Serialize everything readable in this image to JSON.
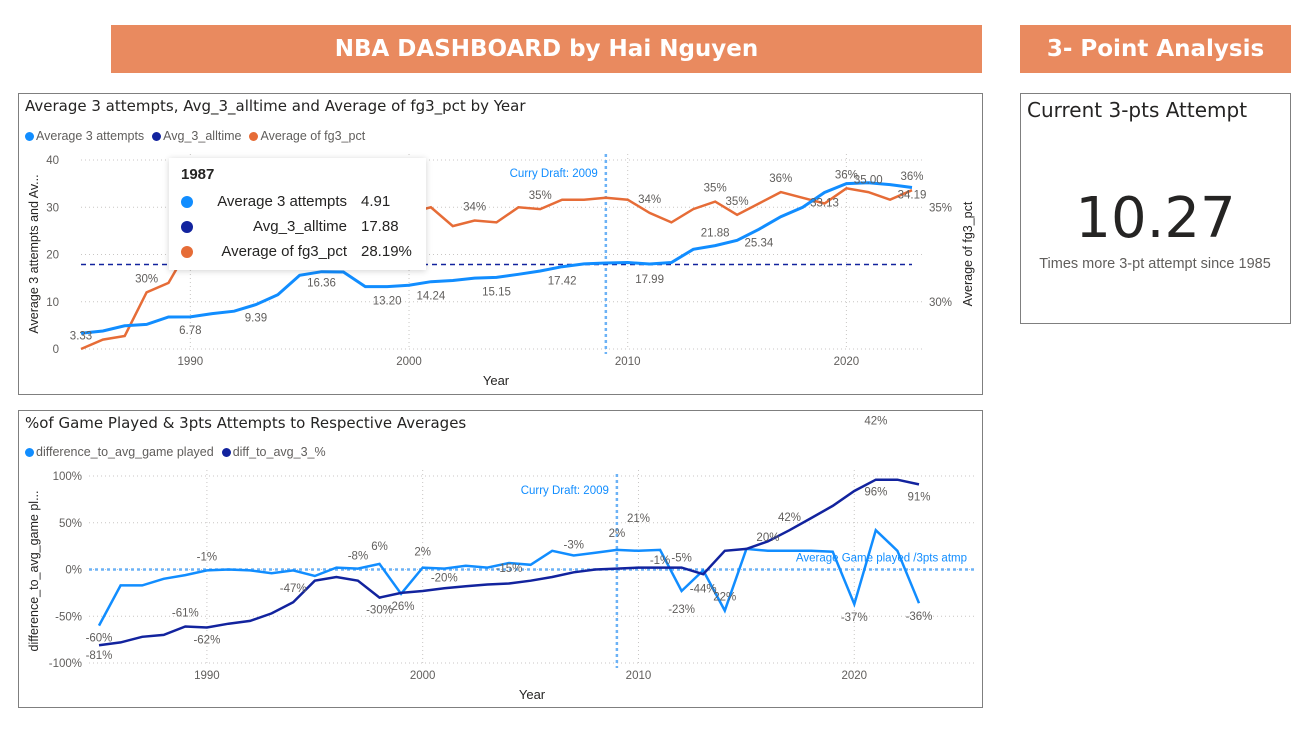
{
  "header": {
    "main_title": "NBA DASHBOARD by Hai Nguyen",
    "side_title": "3- Point Analysis"
  },
  "chart1": {
    "title": "Average 3 attempts, Avg_3_alltime and Average of fg3_pct by Year",
    "legend": [
      "Average 3 attempts",
      "Avg_3_alltime",
      "Average of fg3_pct"
    ],
    "ylabel": "Average 3 attempts and Av...",
    "y2label": "Average of fg3_pct",
    "xlabel": "Year",
    "y_ticks": [
      "0",
      "10",
      "20",
      "30",
      "40"
    ],
    "y2_ticks": [
      "30%",
      "35%"
    ],
    "x_ticks": [
      "1990",
      "2000",
      "2010",
      "2020"
    ],
    "annotation": "Curry Draft: 2009",
    "attempt_labels": [
      "3.33",
      "6.78",
      "9.39",
      "16.36",
      "13.20",
      "14.24",
      "15.15",
      "17.42",
      "17.99",
      "21.88",
      "25.34",
      "33.13",
      "35.00",
      "34.19"
    ],
    "pct_labels": [
      "30%",
      "34%",
      "35%",
      "34%",
      "35%",
      "35%",
      "36%",
      "36%",
      "36%"
    ],
    "tooltip": {
      "year": "1987",
      "rows": [
        {
          "label": "Average 3 attempts",
          "value": "4.91"
        },
        {
          "label": "Avg_3_alltime",
          "value": "17.88"
        },
        {
          "label": "Average of fg3_pct",
          "value": "28.19%"
        }
      ]
    }
  },
  "chart2": {
    "title": "%of Game Played & 3pts Attempts to Respective Averages",
    "legend": [
      "difference_to_avg_game played",
      "diff_to_avg_3_%"
    ],
    "ylabel": "difference_to_avg_game pl...",
    "xlabel": "Year",
    "y_ticks": [
      "-100%",
      "-50%",
      "0%",
      "50%",
      "100%"
    ],
    "x_ticks": [
      "1990",
      "2000",
      "2010",
      "2020"
    ],
    "annotation": "Curry Draft: 2009",
    "ref_label": "Average Game played /3pts atmp",
    "game_labels": [
      "-60%",
      "-1%",
      "-8%",
      "6%",
      "-26%",
      "2%",
      "-20%",
      "-15%",
      "-3%",
      "2%",
      "21%",
      "-1%",
      "-23%",
      "-44%",
      "22%",
      "20%",
      "42%",
      "-37%",
      "-36%"
    ],
    "three_labels": [
      "-81%",
      "-61%",
      "-62%",
      "-47%",
      "-30%",
      "-5%",
      "42%",
      "96%",
      "91%"
    ]
  },
  "kpi": {
    "title": "Current 3-pts Attempt",
    "value": "10.27",
    "subtitle": "Times more 3-pt attempt since 1985"
  },
  "colors": {
    "banner": "#e98a5f",
    "light_blue": "#118dff",
    "dark_blue": "#12239e",
    "orange": "#e66c37"
  },
  "chart_data": [
    {
      "type": "line",
      "title": "Average 3 attempts, Avg_3_alltime and Average of fg3_pct by Year",
      "xlabel": "Year",
      "ylabel": "Average 3 attempts and Av...",
      "y2label": "Average of fg3_pct",
      "xlim": [
        1985,
        2023
      ],
      "ylim": [
        0,
        40
      ],
      "y2lim": [
        27.5,
        37.5
      ],
      "x": [
        1985,
        1986,
        1987,
        1988,
        1989,
        1990,
        1991,
        1992,
        1993,
        1994,
        1995,
        1996,
        1997,
        1998,
        1999,
        2000,
        2001,
        2002,
        2003,
        2004,
        2005,
        2006,
        2007,
        2008,
        2009,
        2010,
        2011,
        2012,
        2013,
        2014,
        2015,
        2016,
        2017,
        2018,
        2019,
        2020,
        2021,
        2022,
        2023
      ],
      "series": [
        {
          "name": "Average 3 attempts",
          "axis": "left",
          "values": [
            3.33,
            3.8,
            4.91,
            5.2,
            6.78,
            6.8,
            7.5,
            8.0,
            9.39,
            11.5,
            15.6,
            16.36,
            16.3,
            13.2,
            13.2,
            13.5,
            14.24,
            14.5,
            15.0,
            15.15,
            15.8,
            16.5,
            17.42,
            18.0,
            18.2,
            18.3,
            17.99,
            18.3,
            21.1,
            21.88,
            23.0,
            25.34,
            28.0,
            30.0,
            33.13,
            35.0,
            35.2,
            34.8,
            34.19
          ]
        },
        {
          "name": "Avg_3_alltime",
          "axis": "left",
          "values": [
            17.88,
            17.88,
            17.88,
            17.88,
            17.88,
            17.88,
            17.88,
            17.88,
            17.88,
            17.88,
            17.88,
            17.88,
            17.88,
            17.88,
            17.88,
            17.88,
            17.88,
            17.88,
            17.88,
            17.88,
            17.88,
            17.88,
            17.88,
            17.88,
            17.88,
            17.88,
            17.88,
            17.88,
            17.88,
            17.88,
            17.88,
            17.88,
            17.88,
            17.88,
            17.88,
            17.88,
            17.88,
            17.88,
            17.88
          ]
        },
        {
          "name": "Average of fg3_pct",
          "axis": "right",
          "values": [
            27.5,
            28.0,
            28.19,
            30.5,
            31.0,
            33.0,
            33.5,
            33.8,
            34.0,
            34.3,
            35.0,
            35.1,
            35.2,
            35.0,
            34.6,
            34.7,
            35.0,
            34.0,
            34.3,
            34.2,
            35.0,
            34.9,
            35.4,
            35.4,
            35.5,
            35.4,
            34.7,
            34.2,
            34.9,
            35.3,
            34.6,
            35.2,
            35.8,
            35.5,
            35.2,
            36.0,
            35.8,
            35.4,
            35.9
          ]
        }
      ]
    },
    {
      "type": "line",
      "title": "%of Game Played & 3pts Attempts to Respective Averages",
      "xlabel": "Year",
      "ylabel": "difference_to_avg_game pl...",
      "xlim": [
        1985,
        2023
      ],
      "ylim": [
        -100,
        100
      ],
      "x": [
        1985,
        1986,
        1987,
        1988,
        1989,
        1990,
        1991,
        1992,
        1993,
        1994,
        1995,
        1996,
        1997,
        1998,
        1999,
        2000,
        2001,
        2002,
        2003,
        2004,
        2005,
        2006,
        2007,
        2008,
        2009,
        2010,
        2011,
        2012,
        2013,
        2014,
        2015,
        2016,
        2017,
        2018,
        2019,
        2020,
        2021,
        2022,
        2023
      ],
      "series": [
        {
          "name": "difference_to_avg_game played",
          "values": [
            -60,
            -17,
            -17,
            -10,
            -6,
            -1,
            0,
            -1,
            -4,
            -1,
            -7,
            2,
            1,
            6,
            -26,
            2,
            1,
            4,
            2,
            7,
            5,
            20,
            15,
            18,
            21,
            20,
            21,
            -23,
            -1,
            -44,
            22,
            20,
            20,
            20,
            19,
            -37,
            42,
            20,
            -36
          ]
        },
        {
          "name": "diff_to_avg_3_%",
          "values": [
            -81,
            -78,
            -72,
            -70,
            -61,
            -62,
            -58,
            -55,
            -47,
            -35,
            -12,
            -8,
            -12,
            -30,
            -25,
            -23,
            -20,
            -18,
            -16,
            -15,
            -12,
            -8,
            -3,
            0,
            1,
            2,
            2,
            2,
            -5,
            20,
            22,
            30,
            42,
            55,
            68,
            84,
            96,
            96,
            91
          ]
        }
      ]
    }
  ]
}
